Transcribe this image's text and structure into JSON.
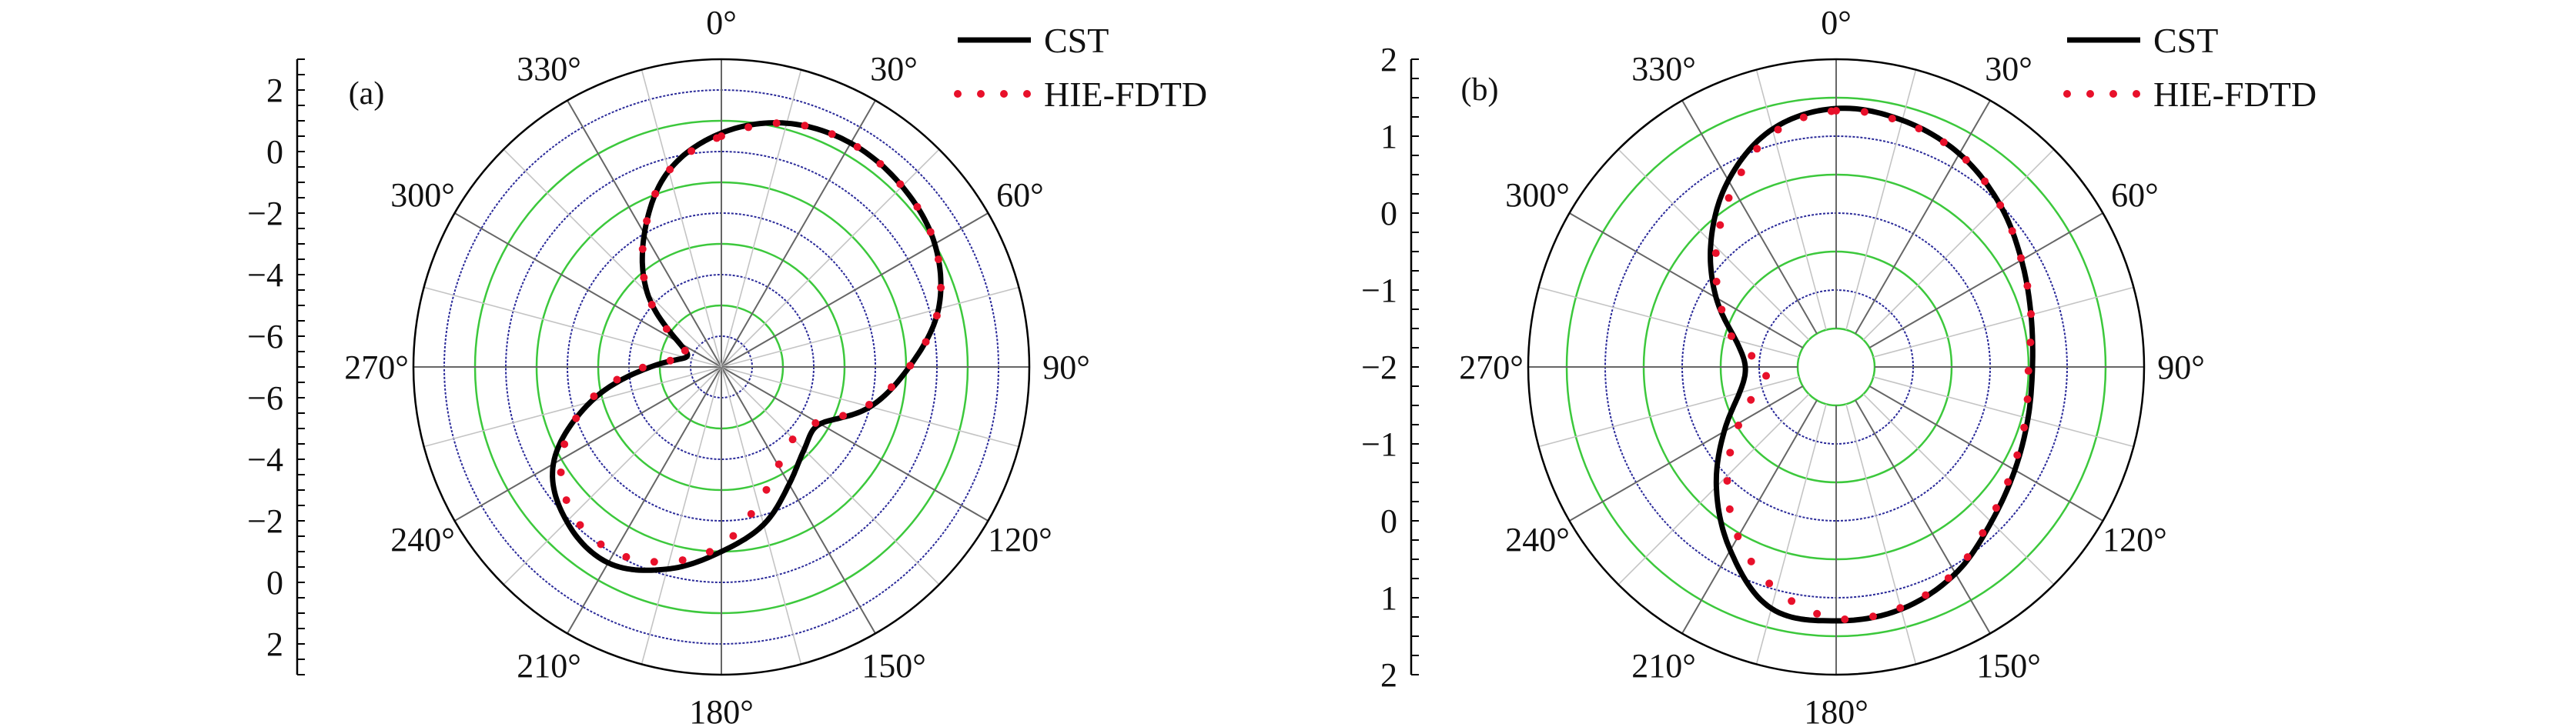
{
  "colors": {
    "cst": "#000000",
    "hie_fdtd": "#e8102a",
    "ring_blue": "#2a2a99",
    "ring_green": "#3cc83c",
    "spoke_major": "#666666",
    "spoke_minor": "#c4c4c4",
    "outer": "#000000"
  },
  "chart_data": [
    {
      "type": "polar-line",
      "panel_label": "(a)",
      "angular_ticks": [
        "0°",
        "30°",
        "60°",
        "90°",
        "120°",
        "150°",
        "180°",
        "210°",
        "240°",
        "270°",
        "300°",
        "330°"
      ],
      "angular_direction": "clockwise, 0° at top",
      "radial_range": [
        -7,
        3
      ],
      "radial_tick_labels": [
        "2",
        "0",
        "−2",
        "−4",
        "−6",
        "−6",
        "−4",
        "−2",
        "0",
        "2"
      ],
      "radial_tick_values": [
        2,
        0,
        -2,
        -4,
        -6,
        -6,
        -4,
        -2,
        0,
        2
      ],
      "rings": [
        -6,
        -5,
        -4,
        -3,
        -2,
        -1,
        0,
        1,
        2
      ],
      "grid": true,
      "legend_position": "top-right",
      "theta": [
        0,
        15,
        30,
        45,
        60,
        75,
        90,
        105,
        120,
        135,
        150,
        165,
        180,
        195,
        210,
        225,
        240,
        255,
        270,
        285,
        300,
        315,
        330,
        345
      ],
      "series": [
        {
          "name": "CST",
          "style": "solid",
          "values": [
            0.6,
            1.2,
            1.4,
            1.3,
            1.0,
            0.3,
            -0.9,
            -2.0,
            -3.3,
            -3.2,
            -2.6,
            -1.7,
            -1.0,
            -0.2,
            0.35,
            0.1,
            -0.7,
            -2.6,
            -4.7,
            -5.8,
            -5.4,
            -3.6,
            -2.0,
            -0.4
          ]
        },
        {
          "name": "HIE-FDTD",
          "style": "dotted",
          "values": [
            0.5,
            1.2,
            1.4,
            1.3,
            1.0,
            0.3,
            -0.9,
            -2.1,
            -3.4,
            -3.7,
            -3.3,
            -2.4,
            -1.2,
            -0.45,
            -0.05,
            -0.2,
            -1.0,
            -2.5,
            -4.5,
            -5.9,
            -5.3,
            -3.6,
            -2.0,
            -0.4
          ]
        }
      ]
    },
    {
      "type": "polar-line",
      "panel_label": "(b)",
      "angular_ticks": [
        "0°",
        "30°",
        "60°",
        "90°",
        "120°",
        "150°",
        "180°",
        "210°",
        "240°",
        "270°",
        "300°",
        "330°"
      ],
      "angular_direction": "clockwise, 0° at top",
      "radial_range": [
        -2,
        2
      ],
      "radial_tick_labels": [
        "2",
        "1",
        "0",
        "−1",
        "−2",
        "−1",
        "0",
        "1",
        "2"
      ],
      "radial_tick_values": [
        2,
        1,
        0,
        -1,
        -2,
        -1,
        0,
        1,
        2
      ],
      "rings": [
        -1.5,
        -1,
        -0.5,
        0,
        0.5,
        1,
        1.5
      ],
      "grid": true,
      "legend_position": "top-right",
      "theta": [
        0,
        15,
        30,
        45,
        60,
        75,
        90,
        105,
        120,
        135,
        150,
        165,
        180,
        195,
        210,
        225,
        240,
        255,
        270,
        285,
        300,
        315,
        330,
        345
      ],
      "series": [
        {
          "name": "CST",
          "style": "solid",
          "values": [
            1.36,
            1.32,
            1.2,
            1.0,
            0.78,
            0.62,
            0.55,
            0.58,
            0.68,
            0.85,
            1.1,
            1.26,
            1.3,
            1.25,
            0.75,
            0.2,
            -0.32,
            -0.7,
            -0.82,
            -0.65,
            -0.2,
            0.3,
            0.8,
            1.2
          ]
        },
        {
          "name": "HIE-FDTD",
          "style": "dotted",
          "values": [
            1.33,
            1.3,
            1.2,
            1.0,
            0.78,
            0.62,
            0.5,
            0.55,
            0.65,
            0.82,
            1.08,
            1.24,
            1.27,
            1.0,
            0.55,
            0.0,
            -0.55,
            -0.95,
            -1.1,
            -0.62,
            -0.25,
            0.2,
            0.68,
            1.15
          ]
        }
      ]
    }
  ]
}
